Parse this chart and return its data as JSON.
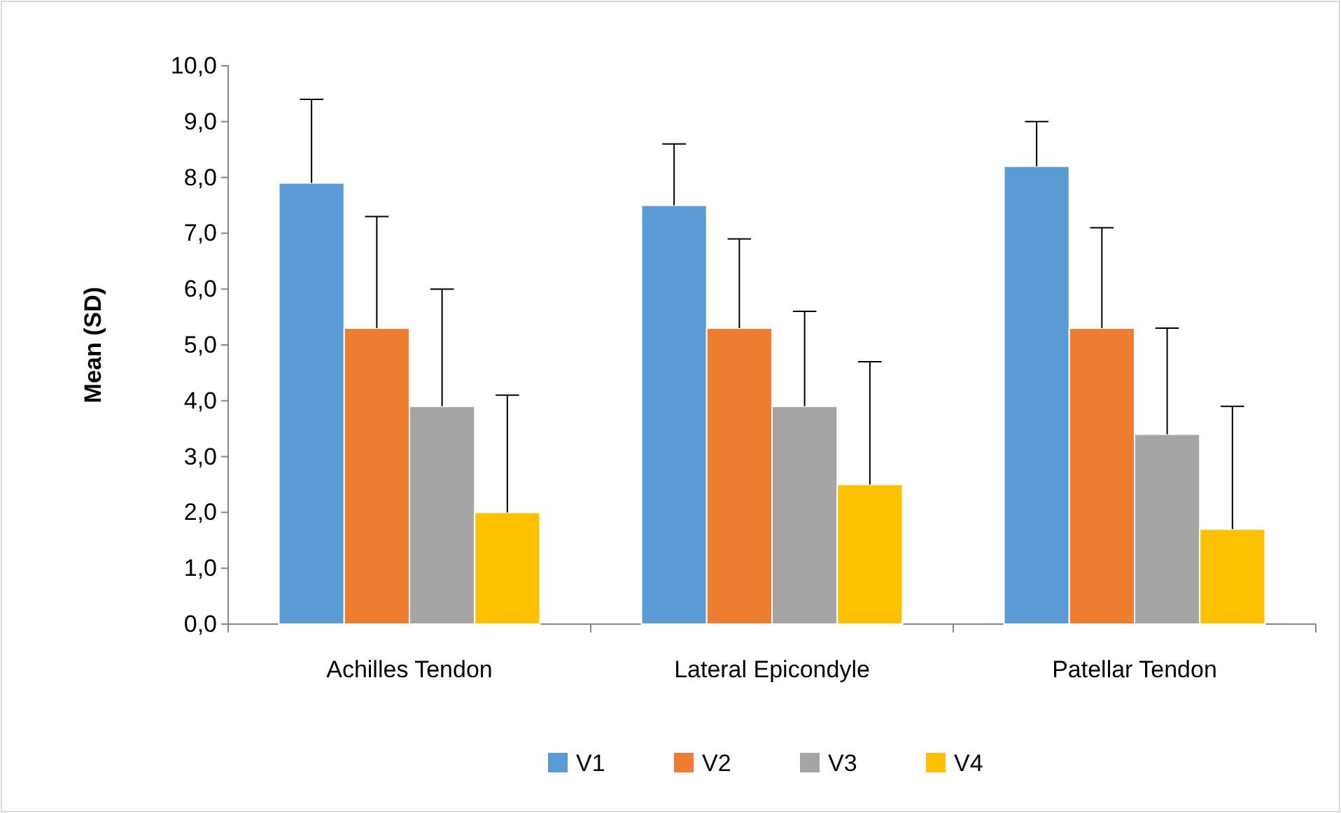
{
  "chart_data": {
    "type": "bar",
    "ylabel": "Mean (SD)",
    "categories": [
      "Achilles Tendon",
      "Lateral Epicondyle",
      "Patellar Tendon"
    ],
    "ylim": [
      0,
      10
    ],
    "yticks": [
      {
        "value": 0,
        "label": "0,0"
      },
      {
        "value": 1,
        "label": "1,0"
      },
      {
        "value": 2,
        "label": "2,0"
      },
      {
        "value": 3,
        "label": "3,0"
      },
      {
        "value": 4,
        "label": "4,0"
      },
      {
        "value": 5,
        "label": "5,0"
      },
      {
        "value": 6,
        "label": "6,0"
      },
      {
        "value": 7,
        "label": "7,0"
      },
      {
        "value": 8,
        "label": "8,0"
      },
      {
        "value": 9,
        "label": "9,0"
      },
      {
        "value": 10,
        "label": "10,0"
      }
    ],
    "legend": "bottom",
    "grid": false,
    "series": [
      {
        "name": "V1",
        "color": "#5b9bd5",
        "values": [
          7.9,
          7.5,
          8.2
        ],
        "errors": [
          [
            7.9,
            9.4
          ],
          [
            7.5,
            8.6
          ],
          [
            8.2,
            9.0
          ]
        ]
      },
      {
        "name": "V2",
        "color": "#ed7d31",
        "values": [
          5.3,
          5.3,
          5.3
        ],
        "errors": [
          [
            5.3,
            7.3
          ],
          [
            5.3,
            6.9
          ],
          [
            5.3,
            7.1
          ]
        ]
      },
      {
        "name": "V3",
        "color": "#a5a5a5",
        "values": [
          3.9,
          3.9,
          3.4
        ],
        "errors": [
          [
            3.9,
            6.0
          ],
          [
            3.9,
            5.6
          ],
          [
            3.4,
            5.3
          ]
        ]
      },
      {
        "name": "V4",
        "color": "#ffc000",
        "values": [
          2.0,
          2.5,
          1.7
        ],
        "errors": [
          [
            2.0,
            4.1
          ],
          [
            2.5,
            4.7
          ],
          [
            1.7,
            3.9
          ]
        ]
      }
    ]
  }
}
